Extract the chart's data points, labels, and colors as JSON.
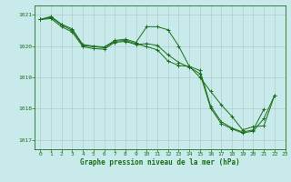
{
  "background_color": "#c8eaea",
  "grid_color": "#b0cccc",
  "line_color": "#1a6e1a",
  "marker_color": "#1a6e1a",
  "xlabel": "Graphe pression niveau de la mer (hPa)",
  "xlabel_color": "#1a6e1a",
  "tick_color": "#1a6e1a",
  "ylim": [
    1016.7,
    1021.3
  ],
  "xlim": [
    -0.5,
    23
  ],
  "yticks": [
    1017,
    1018,
    1019,
    1020,
    1021
  ],
  "xticks": [
    0,
    1,
    2,
    3,
    4,
    5,
    6,
    7,
    8,
    9,
    10,
    11,
    12,
    13,
    14,
    15,
    16,
    17,
    18,
    19,
    20,
    21,
    22,
    23
  ],
  "s1": [
    1020.85,
    1020.95,
    1020.7,
    1020.55,
    1020.05,
    1020.0,
    1019.97,
    1020.18,
    1020.22,
    1020.12,
    1020.62,
    1020.62,
    1020.52,
    1020.0,
    1019.35,
    1019.0,
    1018.55,
    1018.12,
    1017.75,
    1017.32,
    1017.42,
    1017.45,
    1018.42,
    null
  ],
  "s2": [
    1020.85,
    1020.92,
    1020.68,
    1020.5,
    1020.02,
    1019.98,
    1019.95,
    1020.15,
    1020.18,
    1020.08,
    1019.98,
    1019.88,
    1019.52,
    1019.38,
    1019.35,
    1019.22,
    1018.08,
    1017.58,
    1017.38,
    1017.25,
    1017.32,
    1017.98,
    null,
    null
  ],
  "s3": [
    1020.85,
    1020.88,
    1020.62,
    1020.45,
    1019.98,
    1019.92,
    1019.9,
    1020.12,
    1020.15,
    1020.05,
    1020.08,
    1020.02,
    1019.72,
    1019.48,
    1019.32,
    1019.12,
    1018.02,
    1017.52,
    1017.35,
    1017.22,
    1017.28,
    1017.68,
    1018.42,
    null
  ]
}
